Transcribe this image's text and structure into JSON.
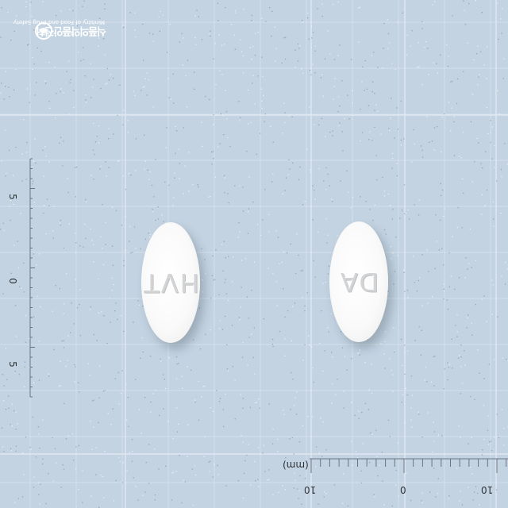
{
  "logo": {
    "name": "식품의약품안전처",
    "subtitle": "Ministry of Food and Drug Safety"
  },
  "scale": {
    "vertical_labels": [
      "5",
      "0",
      "5"
    ],
    "horizontal_labels": [
      "10",
      "0",
      "10"
    ],
    "unit": "(mm)"
  },
  "pills": [
    {
      "imprint": "HVT"
    },
    {
      "imprint": "DA"
    }
  ],
  "colors": {
    "background": "#c3d3e2",
    "grid": "#d6e1ec",
    "pill": "#fafafa"
  }
}
